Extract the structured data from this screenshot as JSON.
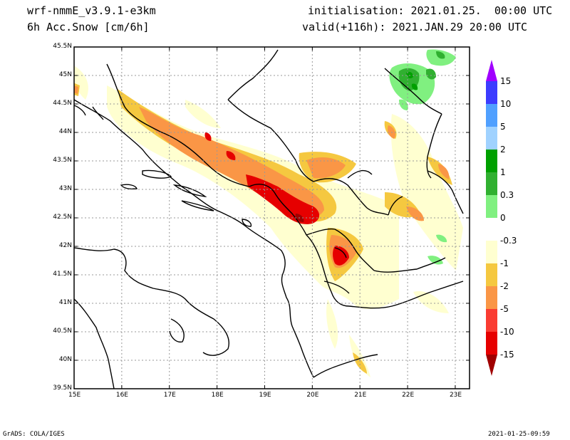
{
  "header": {
    "model": "wrf-nmmE_v3.9.1-e3km",
    "field": "6h Acc.Snow [cm/6h]",
    "initialisation": "initialisation: 2021.01.25.  00:00 UTC",
    "valid": "valid(+116h): 2021.JAN.29 20:00 UTC"
  },
  "axes": {
    "lon_ticks": [
      "15E",
      "16E",
      "17E",
      "18E",
      "19E",
      "20E",
      "21E",
      "22E",
      "23E"
    ],
    "lat_ticks": [
      "45.5N",
      "45N",
      "44.5N",
      "44N",
      "43.5N",
      "43N",
      "42.5N",
      "42N",
      "41.5N",
      "41N",
      "40.5N",
      "40N",
      "39.5N"
    ],
    "lon_range": [
      15.0,
      23.3
    ],
    "lat_range": [
      39.5,
      45.5
    ]
  },
  "legend": {
    "labels": [
      "15",
      "10",
      "5",
      "2",
      "1",
      "0.3",
      "0",
      "-0.3",
      "-1",
      "-2",
      "-5",
      "-10",
      "-15"
    ],
    "colors": [
      "#a000ff",
      "#3c3cff",
      "#50a0ff",
      "#a0d2ff",
      "#00a000",
      "#30b030",
      "#80f080",
      "#ffffff",
      "#ffffd0",
      "#f5c840",
      "#fa9646",
      "#fa3c32",
      "#e60000",
      "#a00000"
    ]
  },
  "footer": {
    "left": "GrADS: COLA/IGES",
    "right": "2021-01-25-09:59"
  }
}
